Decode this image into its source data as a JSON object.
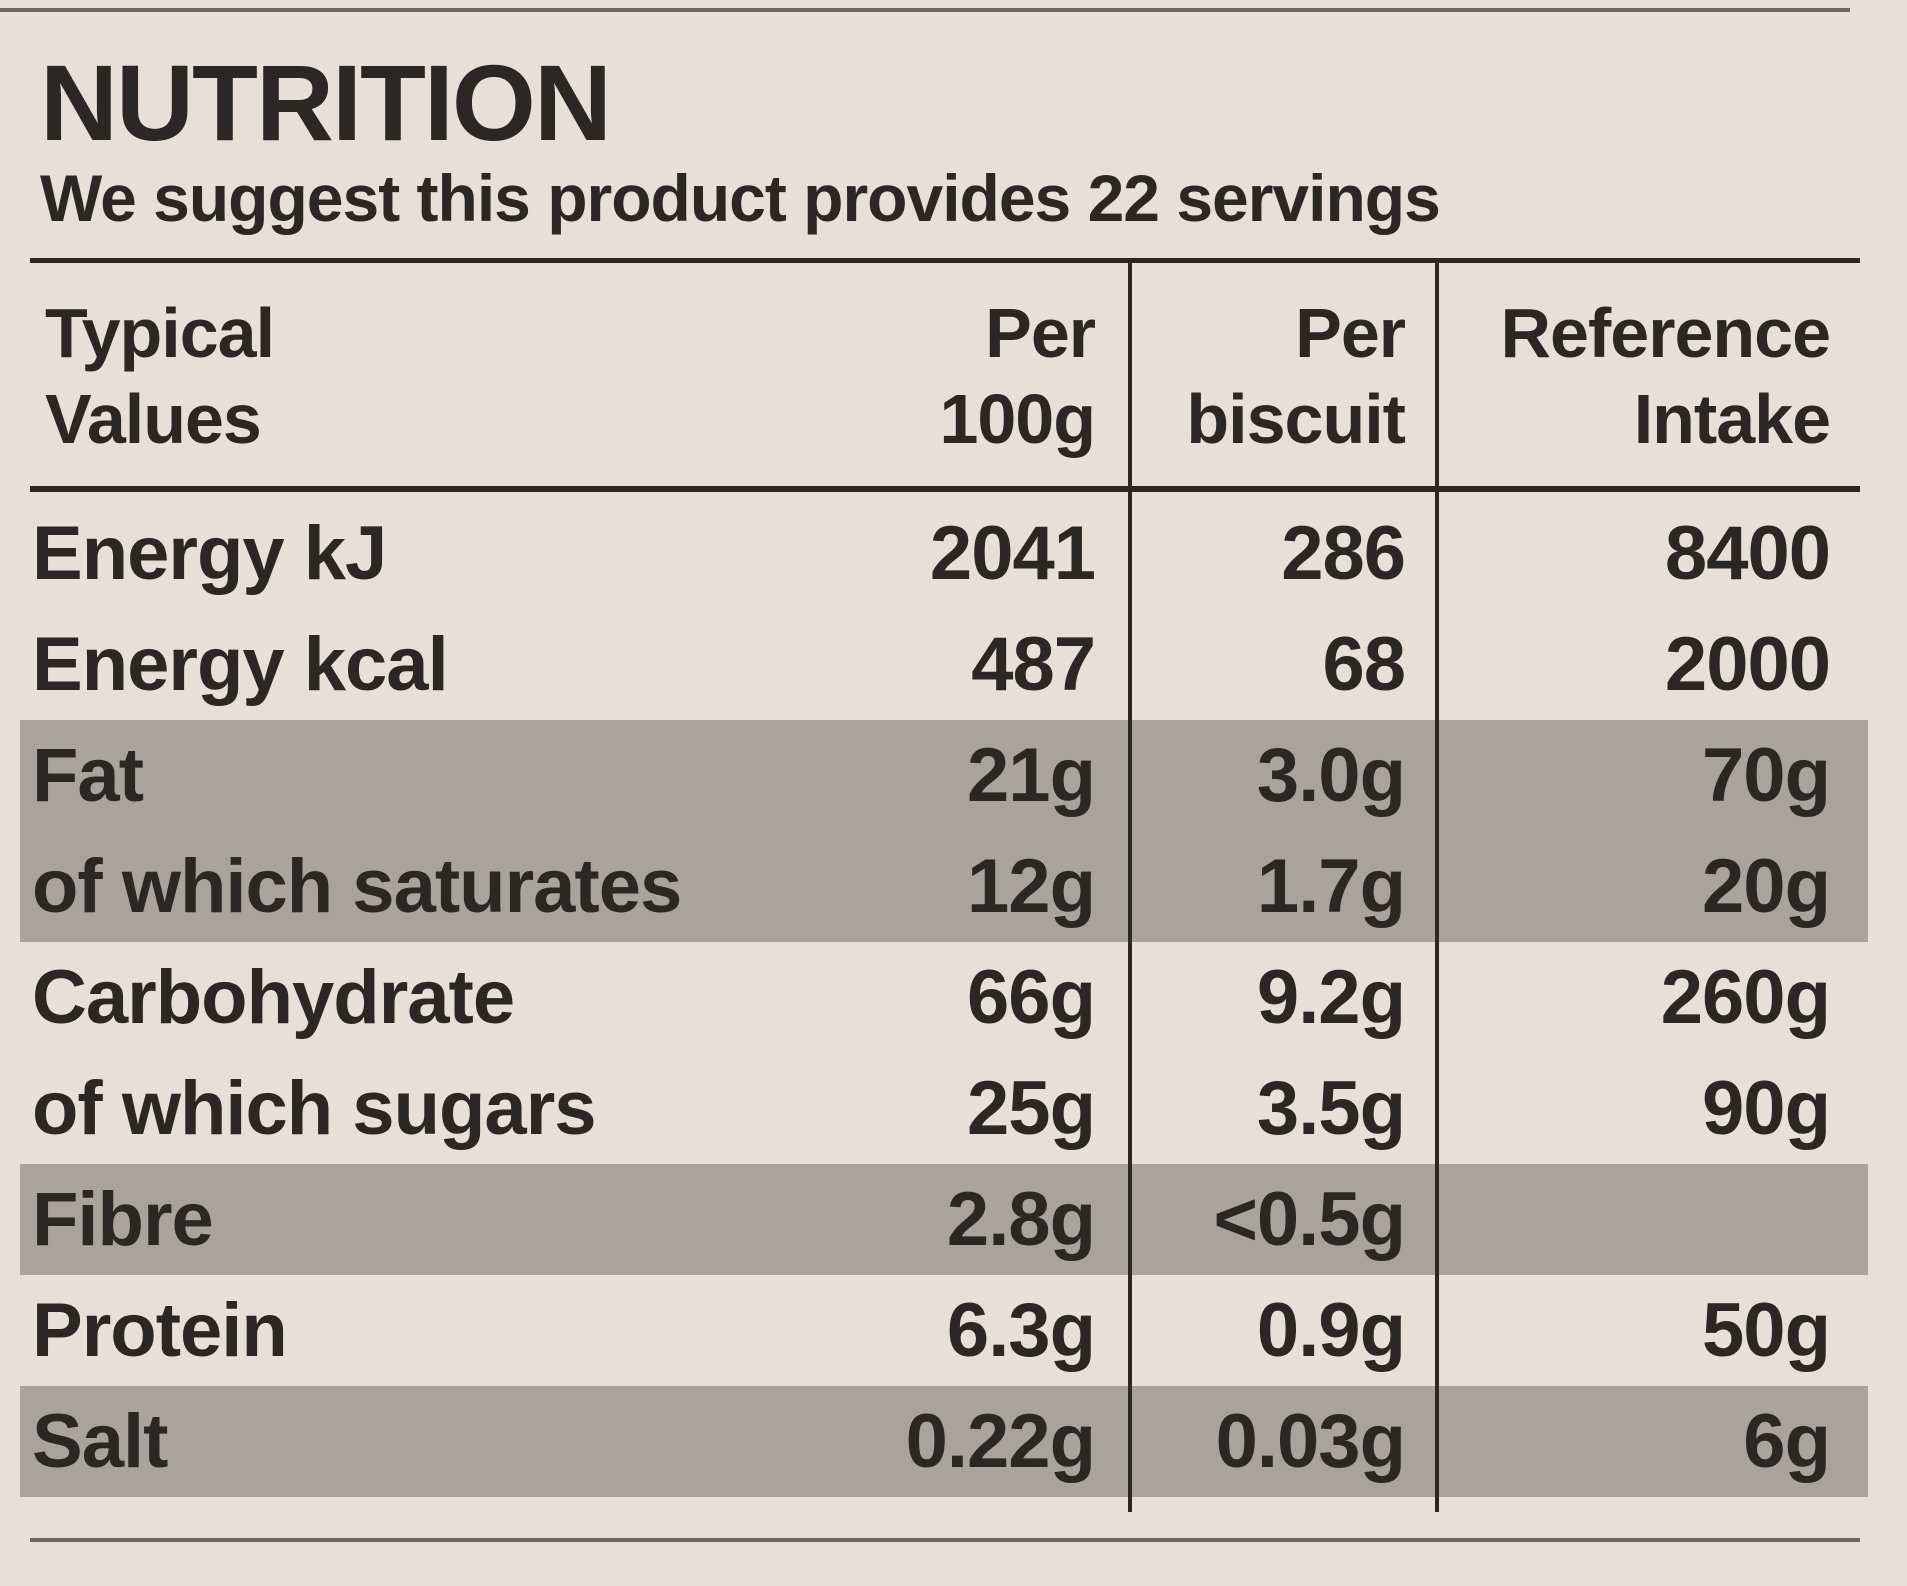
{
  "title": "NUTRITION",
  "subtitle": "We suggest this product provides 22 servings",
  "headers": [
    {
      "line1": "Typical",
      "line2": "Values"
    },
    {
      "line1": "Per",
      "line2": "100g"
    },
    {
      "line1": "Per",
      "line2": "biscuit"
    },
    {
      "line1": "Reference",
      "line2": "Intake"
    }
  ],
  "rows": [
    {
      "label": "Energy kJ",
      "per100g": "2041",
      "perBiscuit": "286",
      "ri": "8400",
      "shaded": false
    },
    {
      "label": "Energy kcal",
      "per100g": "487",
      "perBiscuit": "68",
      "ri": "2000",
      "shaded": false
    },
    {
      "label": "Fat",
      "per100g": "21g",
      "perBiscuit": "3.0g",
      "ri": "70g",
      "shaded": true
    },
    {
      "label": "of which saturates",
      "per100g": "12g",
      "perBiscuit": "1.7g",
      "ri": "20g",
      "shaded": true
    },
    {
      "label": "Carbohydrate",
      "per100g": "66g",
      "perBiscuit": "9.2g",
      "ri": "260g",
      "shaded": false
    },
    {
      "label": "of which sugars",
      "per100g": "25g",
      "perBiscuit": "3.5g",
      "ri": "90g",
      "shaded": false
    },
    {
      "label": "Fibre",
      "per100g": "2.8g",
      "perBiscuit": "<0.5g",
      "ri": "",
      "shaded": true
    },
    {
      "label": "Protein",
      "per100g": "6.3g",
      "perBiscuit": "0.9g",
      "ri": "50g",
      "shaded": false
    },
    {
      "label": "Salt",
      "per100g": "0.22g",
      "perBiscuit": "0.03g",
      "ri": "6g",
      "shaded": true
    }
  ]
}
